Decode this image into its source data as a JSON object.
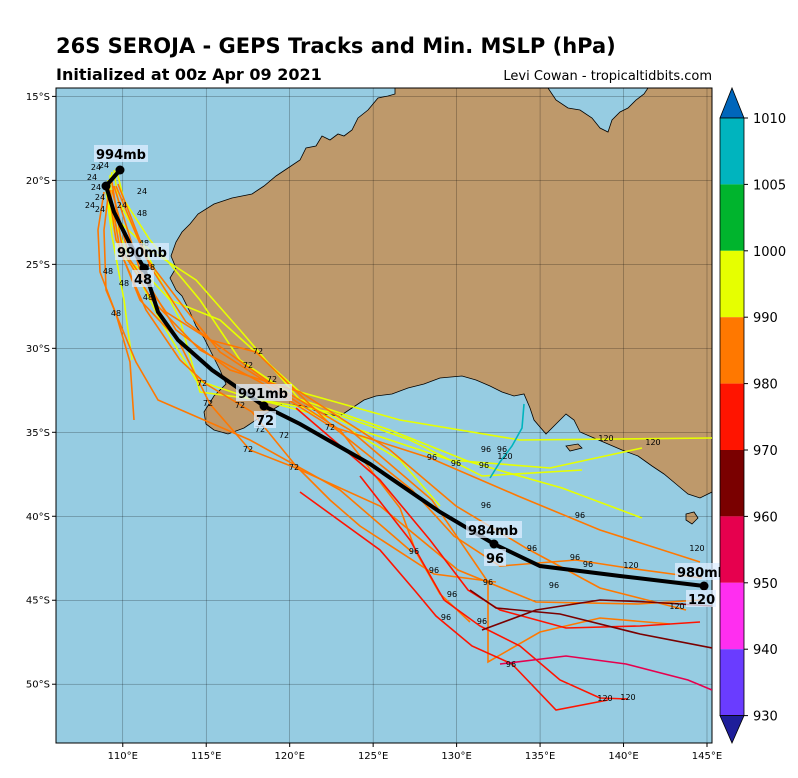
{
  "header": {
    "title": "26S SEROJA - GEPS Tracks and Min. MSLP (hPa)",
    "subtitle": "Initialized at 00z Apr 09 2021",
    "credit": "Levi Cowan - tropicaltidbits.com"
  },
  "map": {
    "lon_range": [
      106,
      145.3
    ],
    "lat_range": [
      -53.5,
      -14.5
    ],
    "lon_ticks": [
      "110°E",
      "115°E",
      "120°E",
      "125°E",
      "130°E",
      "135°E",
      "140°E",
      "145°E"
    ],
    "lat_ticks": [
      "15°S",
      "20°S",
      "25°S",
      "30°S",
      "35°S",
      "40°S",
      "45°S",
      "50°S"
    ],
    "ocean_color": "#96CCE2",
    "land_color": "#BE996B"
  },
  "colorbar": {
    "labels": [
      "1010",
      "1005",
      "1000",
      "990",
      "980",
      "970",
      "960",
      "950",
      "940",
      "930"
    ],
    "colors": [
      "#0066BB",
      "#00B4BE",
      "#00B42D",
      "#E6FF00",
      "#FF7800",
      "#FF1400",
      "#7A0000",
      "#E6004E",
      "#FF2EF0",
      "#6A3CFF",
      "#1E1E9A"
    ]
  },
  "mean_track": {
    "labels": [
      {
        "hour": "",
        "mslp": "994mb"
      },
      {
        "hour": "48",
        "mslp": "990mb"
      },
      {
        "hour": "72",
        "mslp": "991mb"
      },
      {
        "hour": "96",
        "mslp": "984mb"
      },
      {
        "hour": "120",
        "mslp": "980mb"
      }
    ]
  },
  "member_labels": [
    "24",
    "48",
    "72",
    "96",
    "120"
  ]
}
